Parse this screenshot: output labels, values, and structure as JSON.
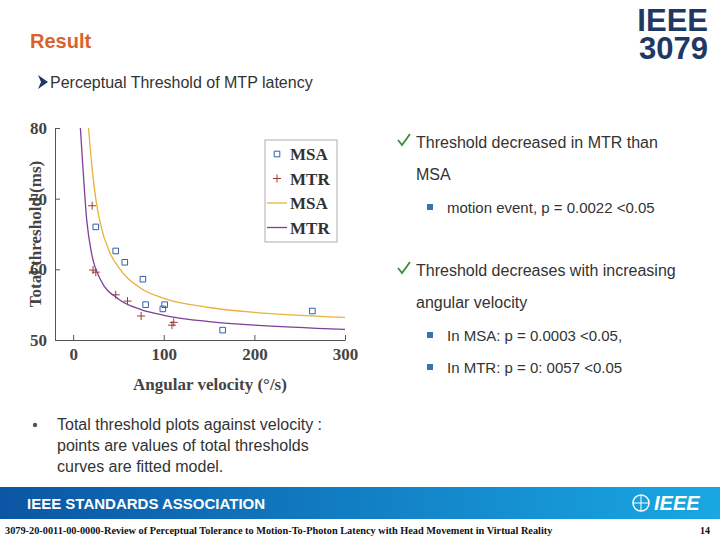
{
  "slide": {
    "title": "Result",
    "logo": [
      "IEEE",
      "3079"
    ],
    "heading": "Perceptual Threshold of MTP latency",
    "points": [
      {
        "lines": [
          "Threshold decreased in MTR than",
          "MSA"
        ],
        "sub": [
          "motion event, p = 0.0022 <0.05"
        ]
      },
      {
        "lines": [
          "Threshold decreases with increasing",
          "angular velocity"
        ],
        "sub": [
          "In MSA: p = 0.0003 <0.05,",
          "In MTR: p = 0: 0057 <0.05"
        ]
      }
    ],
    "note": [
      "Total threshold plots against velocity :",
      "points are values of total thresholds",
      "curves are fitted model."
    ],
    "footer": {
      "org": "IEEE STANDARDS ASSOCIATION",
      "brand": "IEEE",
      "document": "3079-20-0011-00-0000-Review of Perceptual Tolerance to Motion-To-Photon Latency with Head Movement in Virtual Reality",
      "page": "14"
    }
  },
  "chart_data": {
    "type": "scatter",
    "x_label": "Angular velocity (°/s)",
    "y_label": "Total threshold (ms)",
    "xlim": [
      -20,
      300
    ],
    "xticks": [
      0,
      100,
      200,
      300
    ],
    "ylim": [
      50,
      80
    ],
    "yticks": [
      50,
      60,
      70,
      80
    ],
    "legend": "top-right",
    "series": [
      {
        "name": "MSA",
        "type": "scatter",
        "marker": "square",
        "color": "#2f5fa8",
        "x": [
          25,
          47,
          57,
          77,
          80,
          99,
          101,
          165,
          264
        ],
        "values": [
          66.0,
          62.6,
          61.0,
          58.6,
          55.0,
          54.4,
          55.0,
          51.4,
          54.1
        ]
      },
      {
        "name": "MTR",
        "type": "scatter",
        "marker": "plus",
        "color": "#a23a2a",
        "x": [
          21,
          22,
          25,
          47,
          60,
          75,
          109,
          111
        ],
        "values": [
          69.0,
          59.9,
          59.6,
          56.4,
          55.5,
          53.4,
          52.1,
          52.5
        ]
      },
      {
        "name": "MSA",
        "type": "line",
        "line_style": "solid",
        "color": "#e8b23a",
        "x": [
          17,
          20,
          25,
          30,
          40,
          50,
          75,
          100,
          150,
          200,
          300
        ],
        "values": [
          80,
          75.5,
          70,
          66.5,
          62.5,
          60.3,
          57.3,
          55.9,
          54.6,
          53.9,
          53.2
        ]
      },
      {
        "name": "MTR",
        "type": "line",
        "line_style": "solid",
        "color": "#7e3f98",
        "x": [
          8,
          10,
          15,
          20,
          30,
          50,
          75,
          100,
          150,
          200,
          300
        ],
        "values": [
          80,
          76,
          67,
          62.5,
          58.6,
          55.8,
          54.3,
          53.5,
          52.6,
          52.1,
          51.5
        ]
      }
    ]
  }
}
